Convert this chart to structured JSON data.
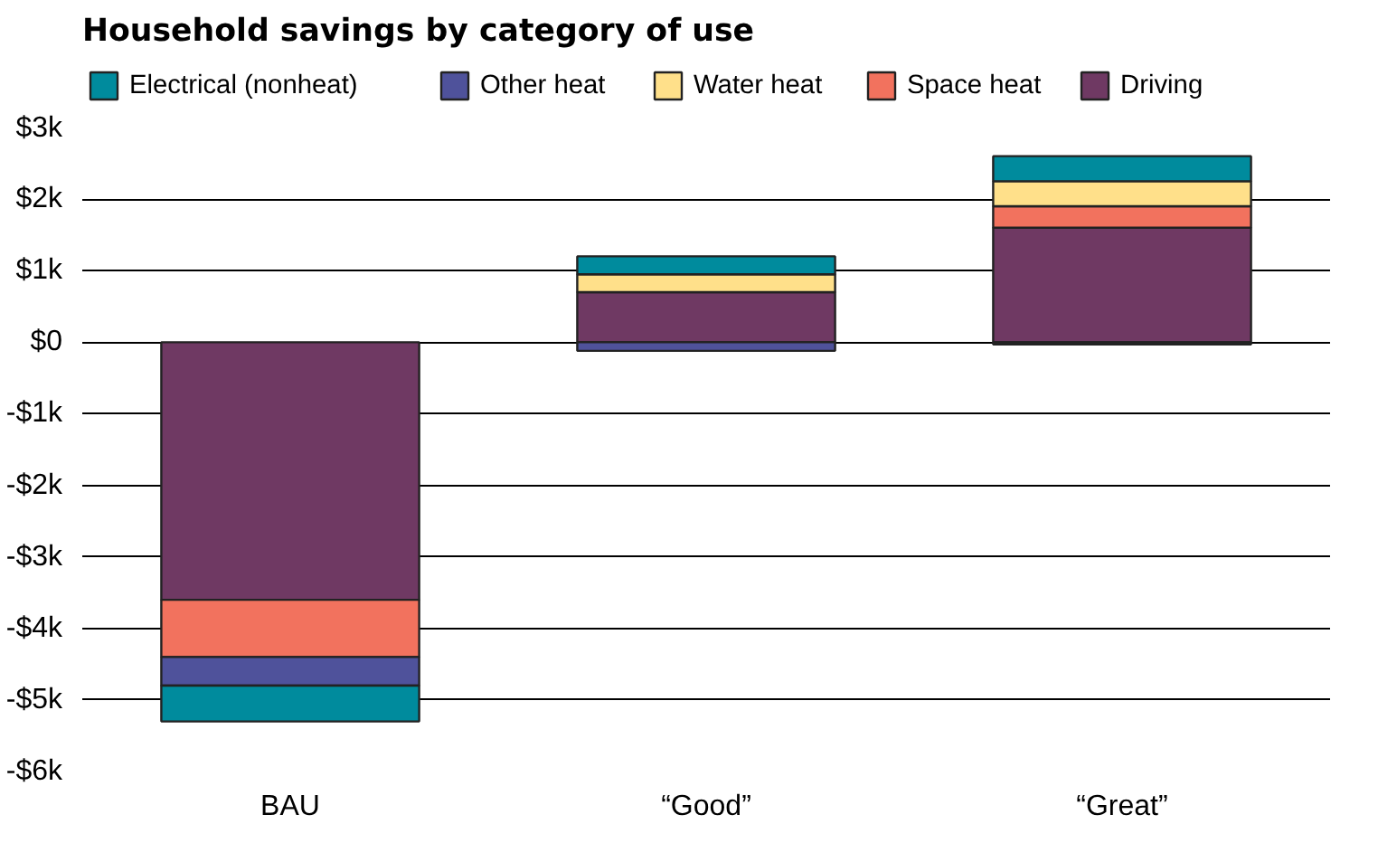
{
  "chart_data": {
    "type": "bar",
    "title": "Household savings by category of use",
    "categories": [
      "BAU",
      "“Good”",
      "“Great”"
    ],
    "stacked": true,
    "series": [
      {
        "name": "Driving",
        "color": "#6f3963",
        "values": [
          -3.6,
          0.7,
          1.6
        ]
      },
      {
        "name": "Space heat",
        "color": "#f2725e",
        "values": [
          -0.8,
          0,
          0.3
        ]
      },
      {
        "name": "Water heat",
        "color": "#ffe08a",
        "values": [
          0,
          0.25,
          0.35
        ]
      },
      {
        "name": "Other heat",
        "color": "#4f529b",
        "values": [
          -0.4,
          -0.12,
          -0.03
        ]
      },
      {
        "name": "Electrical (nonheat)",
        "color": "#008b9d",
        "values": [
          -0.5,
          0.25,
          0.35
        ]
      }
    ],
    "ylim": [
      -6,
      3
    ],
    "yticks": [
      {
        "value": -6,
        "label": "-$6k"
      },
      {
        "value": -5,
        "label": "-$5k"
      },
      {
        "value": -4,
        "label": "-$4k"
      },
      {
        "value": -3,
        "label": "-$3k"
      },
      {
        "value": -2,
        "label": "-$2k"
      },
      {
        "value": -1,
        "label": "-$1k"
      },
      {
        "value": 0,
        "label": "$0"
      },
      {
        "value": 1,
        "label": "$1k"
      },
      {
        "value": 2,
        "label": "$2k"
      },
      {
        "value": 3,
        "label": "$3k"
      }
    ],
    "grid": "y",
    "legend": "top"
  }
}
